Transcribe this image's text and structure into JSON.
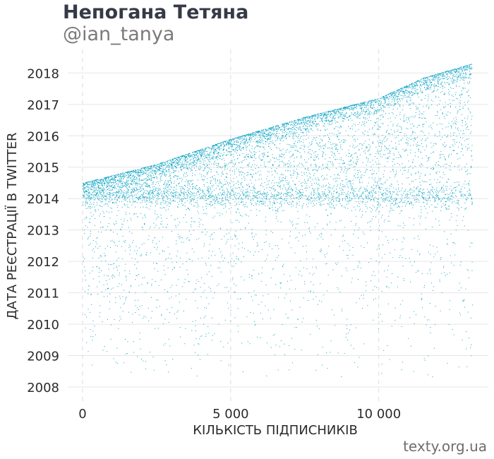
{
  "header": {
    "title": "Непогана Тетяна",
    "subtitle": "@ian_tanya"
  },
  "footer": {
    "source": "texty.org.ua"
  },
  "colors": {
    "point": "#0aa3c2",
    "grid": "#e6e6e6",
    "vgrid": "#dcdcdc",
    "text": "#2b2b2b"
  },
  "chart_data": {
    "type": "scatter",
    "xlabel": "КІЛЬКІСТЬ ПІДПИСНИКІВ",
    "ylabel": "ДАТА РЕЄСТРАЦІЇ В TWITTER",
    "xlim": [
      -500,
      13700
    ],
    "ylim": [
      2007.55,
      2018.75
    ],
    "x_ticks": [
      0,
      5000,
      10000
    ],
    "x_tick_labels": [
      "0",
      "5 000",
      "10 000"
    ],
    "y_ticks": [
      2008,
      2009,
      2010,
      2011,
      2012,
      2013,
      2014,
      2015,
      2016,
      2017,
      2018
    ],
    "y_tick_labels": [
      "2008",
      "2009",
      "2010",
      "2011",
      "2012",
      "2013",
      "2014",
      "2015",
      "2016",
      "2017",
      "2018"
    ],
    "grid": true,
    "legend": "none",
    "n_followers": 13150,
    "frontier": [
      {
        "x": 0,
        "y": 2014.5
      },
      {
        "x": 2500,
        "y": 2015.1
      },
      {
        "x": 5000,
        "y": 2015.9
      },
      {
        "x": 7500,
        "y": 2016.6
      },
      {
        "x": 10000,
        "y": 2017.2
      },
      {
        "x": 11500,
        "y": 2017.85
      },
      {
        "x": 13150,
        "y": 2018.3
      }
    ],
    "min_year": 2008.3
  }
}
